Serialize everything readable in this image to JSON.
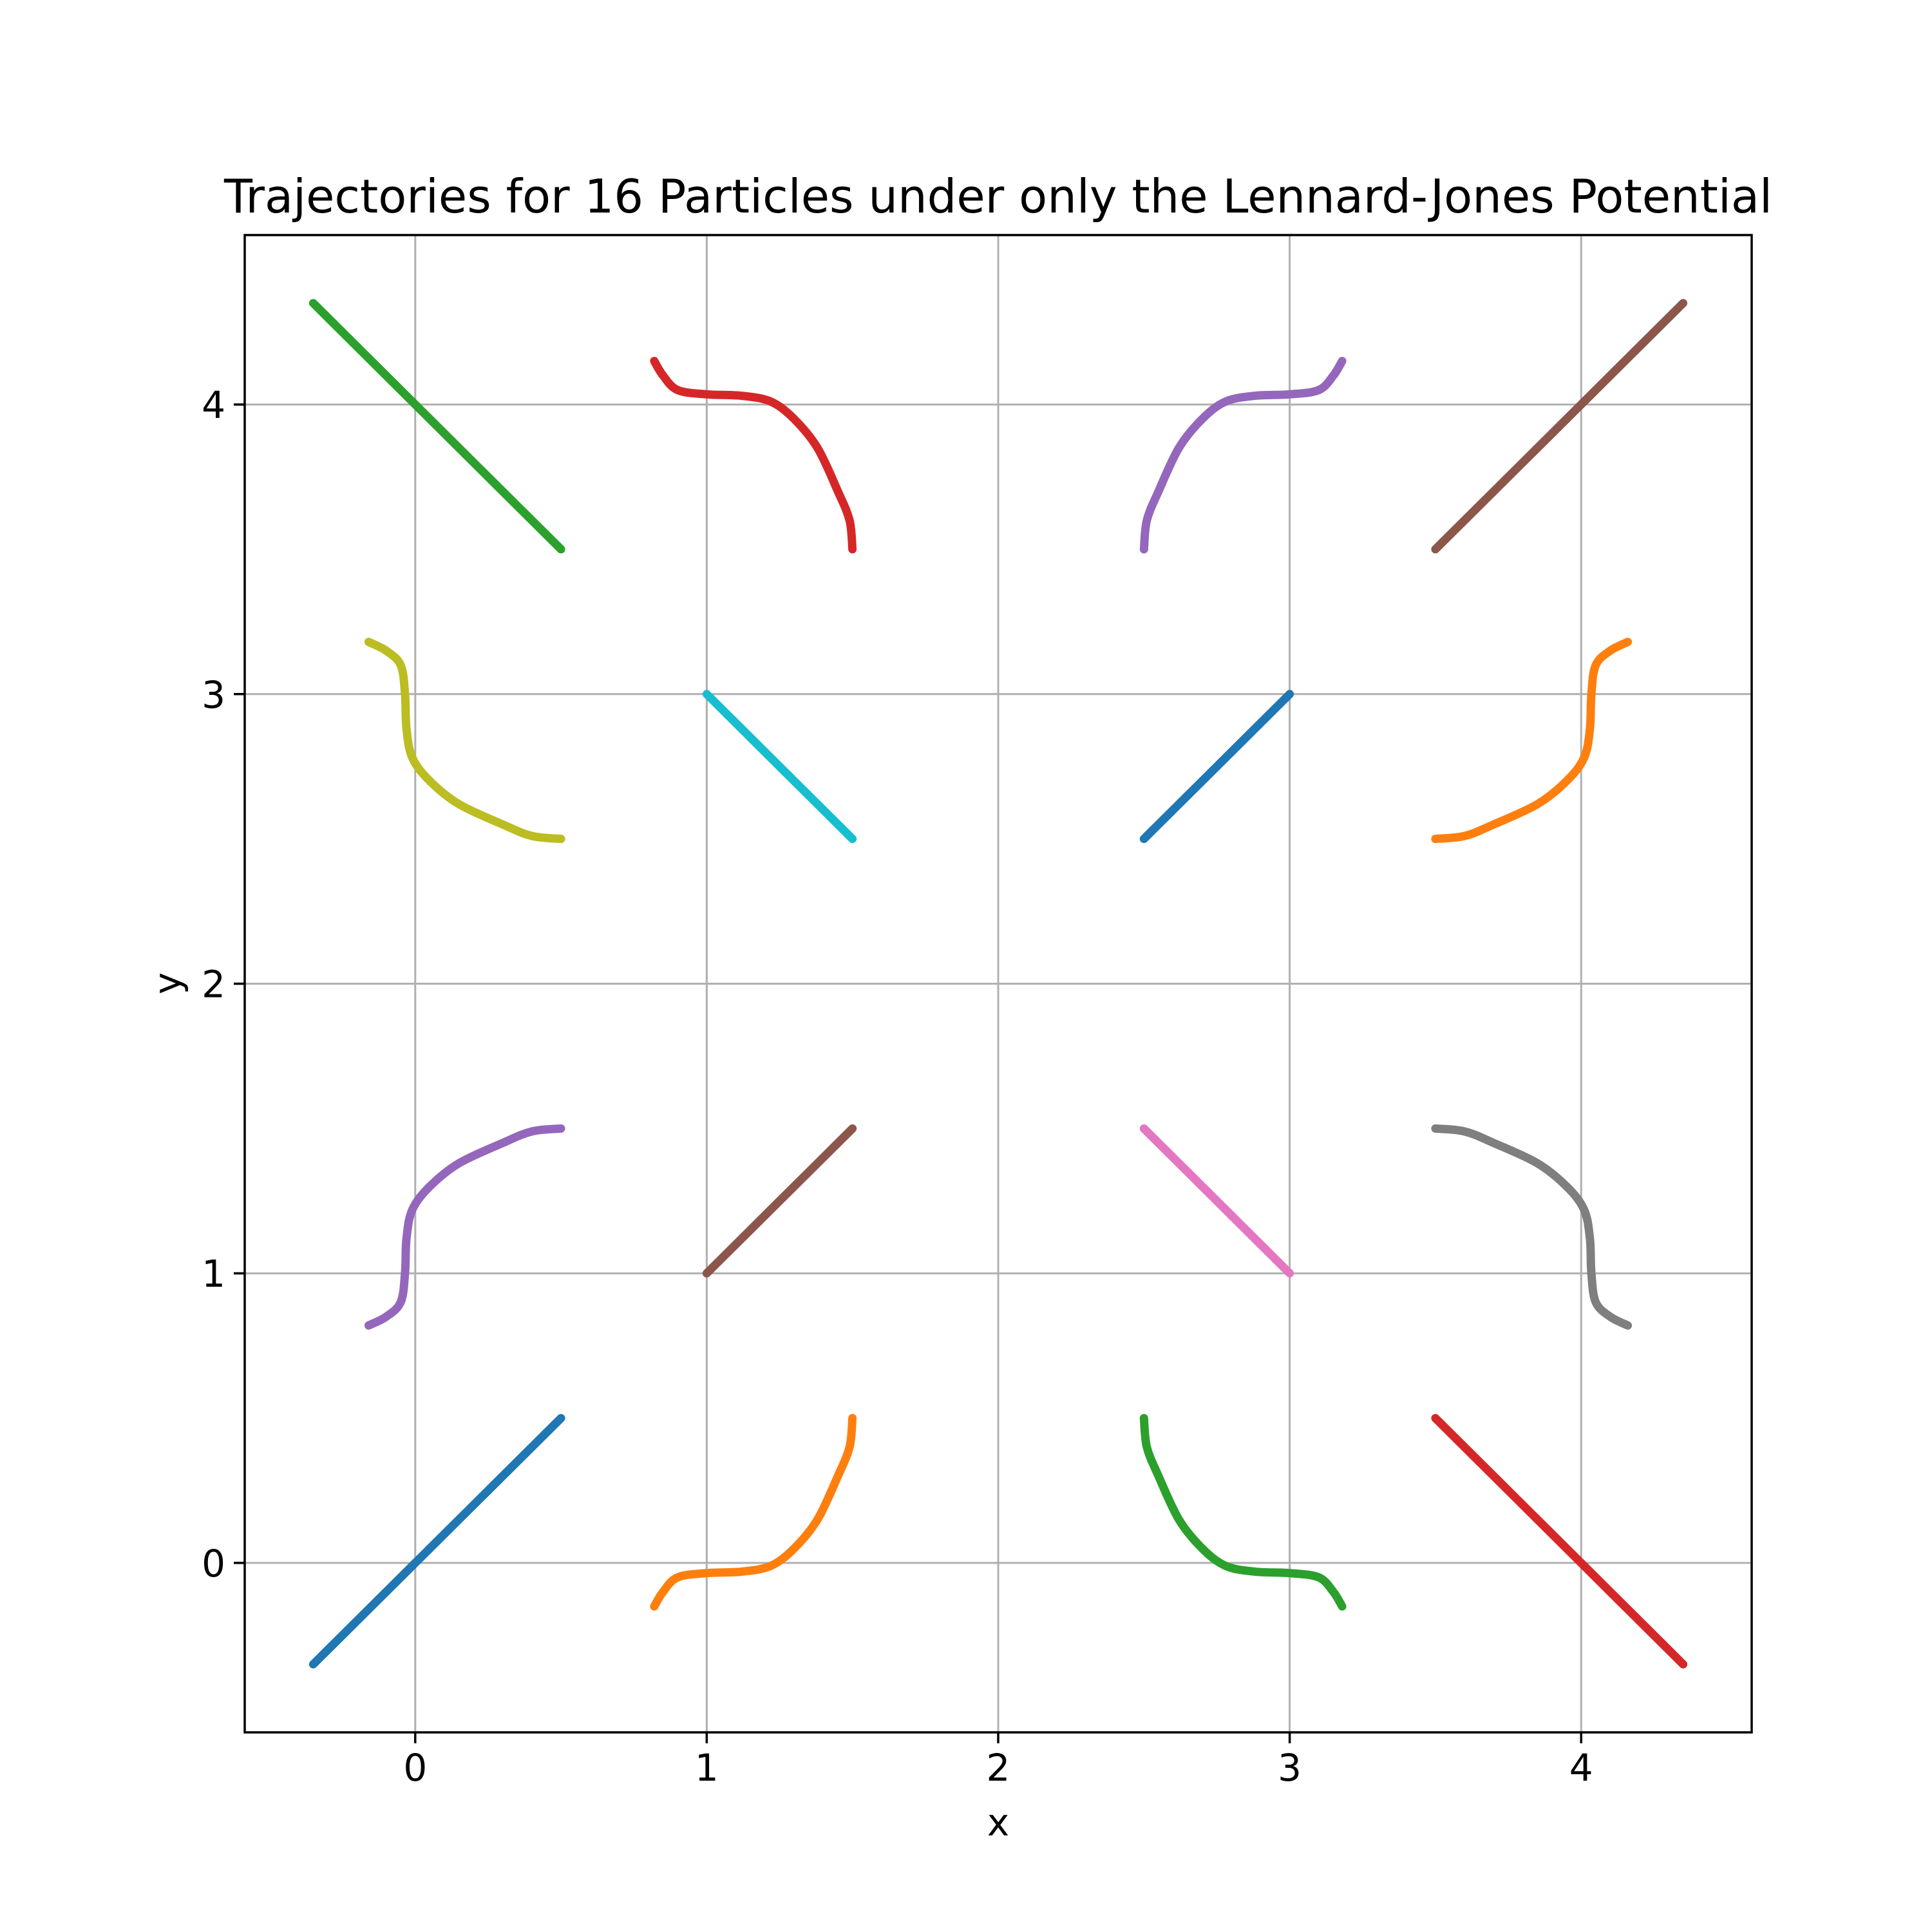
{
  "chart_data": {
    "type": "line",
    "title": "Trajectories for 16 Particles under only the Lennard-Jones Potential",
    "xlabel": "x",
    "ylabel": "y",
    "xlim": [
      -0.585,
      4.585
    ],
    "ylim": [
      -0.585,
      4.585
    ],
    "grid": true,
    "legend": "none",
    "x_ticks": [
      0,
      1,
      2,
      3,
      4
    ],
    "y_ticks": [
      0,
      1,
      2,
      3,
      4
    ],
    "series": [
      {
        "color": "#1f77b4",
        "points": [
          [
            -0.35,
            -0.35
          ],
          [
            0.0,
            0.0
          ],
          [
            0.5,
            0.5
          ]
        ]
      },
      {
        "color": "#ff7f0e",
        "points": [
          [
            0.82,
            -0.15
          ],
          [
            0.85,
            -0.1
          ],
          [
            0.9,
            -0.05
          ],
          [
            1.0,
            -0.035
          ],
          [
            1.12,
            -0.03
          ],
          [
            1.22,
            -0.01
          ],
          [
            1.3,
            0.05
          ],
          [
            1.38,
            0.15
          ],
          [
            1.45,
            0.3
          ],
          [
            1.49,
            0.4
          ],
          [
            1.5,
            0.5
          ]
        ]
      },
      {
        "color": "#2ca02c",
        "points": [
          [
            2.5,
            0.5
          ],
          [
            2.51,
            0.4
          ],
          [
            2.55,
            0.3
          ],
          [
            2.62,
            0.15
          ],
          [
            2.7,
            0.05
          ],
          [
            2.78,
            -0.01
          ],
          [
            2.88,
            -0.03
          ],
          [
            3.0,
            -0.035
          ],
          [
            3.1,
            -0.05
          ],
          [
            3.15,
            -0.1
          ],
          [
            3.18,
            -0.15
          ]
        ]
      },
      {
        "color": "#d62728",
        "points": [
          [
            3.5,
            0.5
          ],
          [
            4.0,
            0.0
          ],
          [
            4.35,
            -0.35
          ]
        ]
      },
      {
        "color": "#9467bd",
        "points": [
          [
            -0.16,
            0.82
          ],
          [
            -0.1,
            0.85
          ],
          [
            -0.05,
            0.9
          ],
          [
            -0.035,
            1.0
          ],
          [
            -0.03,
            1.12
          ],
          [
            -0.01,
            1.22
          ],
          [
            0.05,
            1.3
          ],
          [
            0.15,
            1.38
          ],
          [
            0.3,
            1.45
          ],
          [
            0.4,
            1.49
          ],
          [
            0.5,
            1.5
          ]
        ]
      },
      {
        "color": "#8c564b",
        "points": [
          [
            1.0,
            1.0
          ],
          [
            1.5,
            1.5
          ]
        ]
      },
      {
        "color": "#e377c2",
        "points": [
          [
            2.5,
            1.5
          ],
          [
            3.0,
            1.0
          ]
        ]
      },
      {
        "color": "#7f7f7f",
        "points": [
          [
            3.5,
            1.5
          ],
          [
            3.6,
            1.49
          ],
          [
            3.7,
            1.45
          ],
          [
            3.85,
            1.38
          ],
          [
            3.95,
            1.3
          ],
          [
            4.01,
            1.22
          ],
          [
            4.03,
            1.12
          ],
          [
            4.035,
            1.0
          ],
          [
            4.05,
            0.9
          ],
          [
            4.1,
            0.85
          ],
          [
            4.16,
            0.82
          ]
        ]
      },
      {
        "color": "#bcbd22",
        "points": [
          [
            -0.16,
            3.18
          ],
          [
            -0.1,
            3.15
          ],
          [
            -0.05,
            3.1
          ],
          [
            -0.035,
            3.0
          ],
          [
            -0.03,
            2.88
          ],
          [
            -0.01,
            2.78
          ],
          [
            0.05,
            2.7
          ],
          [
            0.15,
            2.62
          ],
          [
            0.3,
            2.55
          ],
          [
            0.4,
            2.51
          ],
          [
            0.5,
            2.5
          ]
        ]
      },
      {
        "color": "#17becf",
        "points": [
          [
            1.0,
            3.0
          ],
          [
            1.5,
            2.5
          ]
        ]
      },
      {
        "color": "#1f77b4",
        "points": [
          [
            2.5,
            2.5
          ],
          [
            3.0,
            3.0
          ]
        ]
      },
      {
        "color": "#ff7f0e",
        "points": [
          [
            3.5,
            2.5
          ],
          [
            3.6,
            2.51
          ],
          [
            3.7,
            2.55
          ],
          [
            3.85,
            2.62
          ],
          [
            3.95,
            2.7
          ],
          [
            4.01,
            2.78
          ],
          [
            4.03,
            2.88
          ],
          [
            4.035,
            3.0
          ],
          [
            4.05,
            3.1
          ],
          [
            4.1,
            3.15
          ],
          [
            4.16,
            3.18
          ]
        ]
      },
      {
        "color": "#2ca02c",
        "points": [
          [
            -0.35,
            4.35
          ],
          [
            0.0,
            4.0
          ],
          [
            0.5,
            3.5
          ]
        ]
      },
      {
        "color": "#d62728",
        "points": [
          [
            0.82,
            4.15
          ],
          [
            0.85,
            4.1
          ],
          [
            0.9,
            4.05
          ],
          [
            1.0,
            4.035
          ],
          [
            1.12,
            4.03
          ],
          [
            1.22,
            4.01
          ],
          [
            1.3,
            3.95
          ],
          [
            1.38,
            3.85
          ],
          [
            1.45,
            3.7
          ],
          [
            1.49,
            3.6
          ],
          [
            1.5,
            3.5
          ]
        ]
      },
      {
        "color": "#9467bd",
        "points": [
          [
            2.5,
            3.5
          ],
          [
            2.51,
            3.6
          ],
          [
            2.55,
            3.7
          ],
          [
            2.62,
            3.85
          ],
          [
            2.7,
            3.95
          ],
          [
            2.78,
            4.01
          ],
          [
            2.88,
            4.03
          ],
          [
            3.0,
            4.035
          ],
          [
            3.1,
            4.05
          ],
          [
            3.15,
            4.1
          ],
          [
            3.18,
            4.15
          ]
        ]
      },
      {
        "color": "#8c564b",
        "points": [
          [
            3.5,
            3.5
          ],
          [
            4.0,
            4.0
          ],
          [
            4.35,
            4.35
          ]
        ]
      }
    ]
  }
}
